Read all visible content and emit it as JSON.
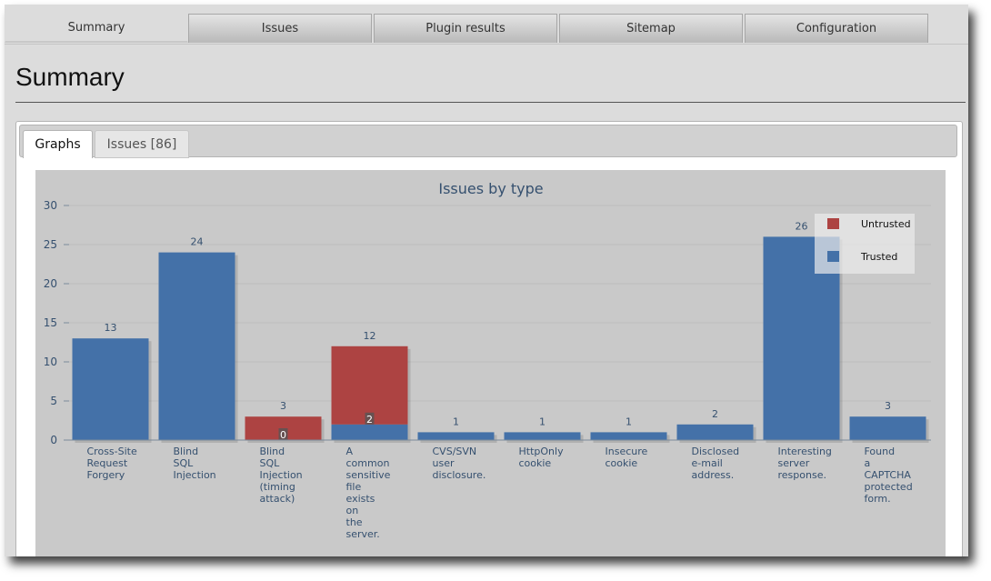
{
  "nav": {
    "tabs": [
      "Summary",
      "Issues",
      "Plugin results",
      "Sitemap",
      "Configuration"
    ],
    "active": 0
  },
  "page": {
    "title": "Summary"
  },
  "subtabs": {
    "graphs": "Graphs",
    "issues": "Issues [86]"
  },
  "colors": {
    "trusted": "#4471a8",
    "untrusted": "#ad4342",
    "axis_text": "#35506f",
    "background": "#c9c9c9"
  },
  "chart_data": {
    "type": "bar",
    "stacked": true,
    "title": "Issues by type",
    "ylim": [
      0,
      30
    ],
    "yticks": [
      0,
      5,
      10,
      15,
      20,
      25,
      30
    ],
    "grid": true,
    "legend_position": "top-right",
    "categories": [
      [
        "Cross-Site",
        "Request",
        "Forgery"
      ],
      [
        "Blind",
        "SQL",
        "Injection"
      ],
      [
        "Blind",
        "SQL",
        "Injection",
        "(timing",
        "attack)"
      ],
      [
        "A",
        "common",
        "sensitive",
        "file",
        "exists",
        "on",
        "the",
        "server."
      ],
      [
        "CVS/SVN",
        "user",
        "disclosure."
      ],
      [
        "HttpOnly",
        "cookie"
      ],
      [
        "Insecure",
        "cookie"
      ],
      [
        "Disclosed",
        "e-mail",
        "address."
      ],
      [
        "Interesting",
        "server",
        "response."
      ],
      [
        "Found",
        "a",
        "CAPTCHA",
        "protected",
        "form."
      ]
    ],
    "series": [
      {
        "name": "Trusted",
        "values": [
          13,
          24,
          0,
          2,
          1,
          1,
          1,
          2,
          26,
          3
        ]
      },
      {
        "name": "Untrusted",
        "values": [
          0,
          0,
          3,
          10,
          0,
          0,
          0,
          0,
          0,
          0
        ]
      }
    ],
    "total_labels": [
      "13",
      "24",
      "3",
      "12",
      "1",
      "1",
      "1",
      "2",
      "26",
      "3"
    ],
    "inner_labels": [
      {
        "category_index": 2,
        "text": "0"
      },
      {
        "category_index": 3,
        "text": "2"
      }
    ]
  }
}
